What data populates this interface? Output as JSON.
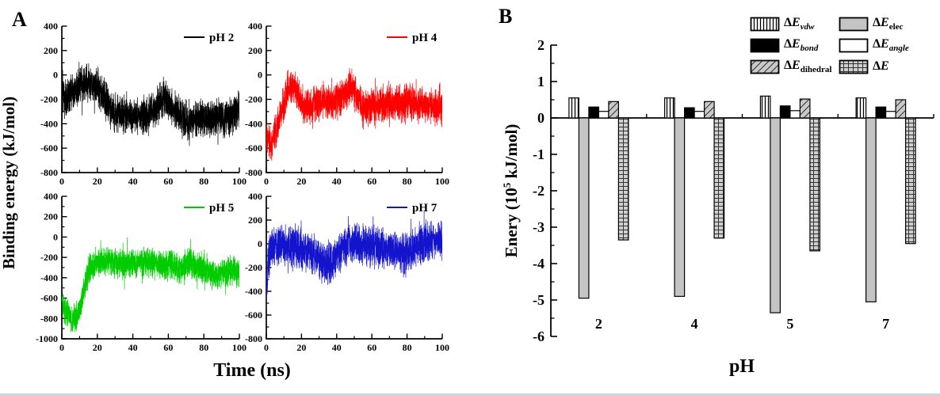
{
  "figure": {
    "panel_a_label": "A",
    "panel_b_label": "B",
    "background": "#ffffff"
  },
  "panel_a": {
    "ylabel": "Binding energy  (kJ/mol)",
    "xlabel": "Time (ns)"
  },
  "panel_b": {
    "ylabel_prefix": "Enery (10",
    "ylabel_exp": "5",
    "ylabel_suffix": " kJ/mol)",
    "xlabel": "pH",
    "legend": [
      {
        "main": "ΔE",
        "sub": "vdw",
        "sub_italic": true,
        "pattern": "vstripe"
      },
      {
        "main": "ΔE",
        "sub": "elec",
        "sub_italic": false,
        "pattern": "gray"
      },
      {
        "main": "ΔE",
        "sub": "bond",
        "sub_italic": true,
        "pattern": "black"
      },
      {
        "main": "ΔE",
        "sub": "angle",
        "sub_italic": true,
        "pattern": "white"
      },
      {
        "main": "ΔE",
        "sub": "dihedral",
        "sub_italic": false,
        "pattern": "diag"
      },
      {
        "main": "ΔE",
        "sub": "",
        "sub_italic": false,
        "pattern": "grid"
      }
    ]
  },
  "chart_data": [
    {
      "type": "line",
      "panel": "A",
      "series_label": "pH 2",
      "color": "#000000",
      "xlim": [
        0,
        100
      ],
      "x_ticks": [
        0,
        20,
        40,
        60,
        80,
        100
      ],
      "x_minor_step": 10,
      "ylim": [
        -800,
        400
      ],
      "y_ticks": [
        400,
        200,
        0,
        -200,
        -400,
        -600,
        -800
      ],
      "y_minor_step": 100,
      "xlabel": "Time (ns)",
      "ylabel": "Binding energy (kJ/mol)",
      "grid": false,
      "mean_profile": [
        [
          0,
          -210
        ],
        [
          4,
          -160
        ],
        [
          8,
          -120
        ],
        [
          12,
          -70
        ],
        [
          16,
          -60
        ],
        [
          20,
          -100
        ],
        [
          24,
          -200
        ],
        [
          28,
          -300
        ],
        [
          33,
          -320
        ],
        [
          38,
          -330
        ],
        [
          44,
          -340
        ],
        [
          50,
          -320
        ],
        [
          54,
          -240
        ],
        [
          57,
          -185
        ],
        [
          60,
          -230
        ],
        [
          64,
          -300
        ],
        [
          68,
          -355
        ],
        [
          74,
          -365
        ],
        [
          80,
          -355
        ],
        [
          86,
          -345
        ],
        [
          92,
          -350
        ],
        [
          96,
          -330
        ],
        [
          100,
          -290
        ]
      ],
      "noise_halfwidth": 155,
      "seed": 2,
      "n_points": 2400
    },
    {
      "type": "line",
      "panel": "A",
      "series_label": "pH 4",
      "color": "#ff0000",
      "xlim": [
        0,
        100
      ],
      "x_ticks": [
        0,
        20,
        40,
        60,
        80,
        100
      ],
      "x_minor_step": 10,
      "ylim": [
        -800,
        400
      ],
      "y_ticks": [
        400,
        200,
        0,
        -200,
        -400,
        -600,
        -800
      ],
      "y_minor_step": 100,
      "xlabel": "Time (ns)",
      "ylabel": "Binding energy (kJ/mol)",
      "grid": false,
      "mean_profile": [
        [
          0,
          -480
        ],
        [
          2,
          -560
        ],
        [
          4,
          -520
        ],
        [
          6,
          -430
        ],
        [
          9,
          -280
        ],
        [
          12,
          -130
        ],
        [
          15,
          -95
        ],
        [
          18,
          -160
        ],
        [
          21,
          -250
        ],
        [
          25,
          -265
        ],
        [
          29,
          -230
        ],
        [
          33,
          -205
        ],
        [
          37,
          -240
        ],
        [
          41,
          -200
        ],
        [
          45,
          -140
        ],
        [
          48,
          -90
        ],
        [
          51,
          -170
        ],
        [
          54,
          -240
        ],
        [
          58,
          -270
        ],
        [
          63,
          -245
        ],
        [
          68,
          -225
        ],
        [
          73,
          -240
        ],
        [
          78,
          -225
        ],
        [
          83,
          -230
        ],
        [
          88,
          -245
        ],
        [
          93,
          -255
        ],
        [
          100,
          -270
        ]
      ],
      "noise_halfwidth": 145,
      "seed": 5,
      "n_points": 2400
    },
    {
      "type": "line",
      "panel": "A",
      "series_label": "pH 5",
      "color": "#00cc00",
      "xlim": [
        0,
        100
      ],
      "x_ticks": [
        0,
        20,
        40,
        60,
        80,
        100
      ],
      "x_minor_step": 10,
      "ylim": [
        -1000,
        400
      ],
      "y_ticks": [
        400,
        200,
        0,
        -200,
        -400,
        -600,
        -800,
        -1000
      ],
      "y_minor_step": 100,
      "xlabel": "Time (ns)",
      "ylabel": "Binding energy (kJ/mol)",
      "grid": false,
      "mean_profile": [
        [
          0,
          -670
        ],
        [
          3,
          -740
        ],
        [
          6,
          -820
        ],
        [
          9,
          -760
        ],
        [
          11,
          -640
        ],
        [
          13,
          -480
        ],
        [
          15,
          -330
        ],
        [
          18,
          -260
        ],
        [
          22,
          -245
        ],
        [
          27,
          -230
        ],
        [
          32,
          -265
        ],
        [
          37,
          -280
        ],
        [
          42,
          -260
        ],
        [
          47,
          -255
        ],
        [
          52,
          -250
        ],
        [
          57,
          -270
        ],
        [
          62,
          -285
        ],
        [
          67,
          -295
        ],
        [
          72,
          -275
        ],
        [
          77,
          -285
        ],
        [
          82,
          -330
        ],
        [
          86,
          -390
        ],
        [
          90,
          -355
        ],
        [
          94,
          -330
        ],
        [
          100,
          -345
        ]
      ],
      "noise_halfwidth": 145,
      "seed": 9,
      "n_points": 2400
    },
    {
      "type": "line",
      "panel": "A",
      "series_label": "pH 7",
      "color": "#1414cc",
      "xlim": [
        0,
        100
      ],
      "x_ticks": [
        0,
        20,
        40,
        60,
        80,
        100
      ],
      "x_minor_step": 10,
      "ylim": [
        -800,
        400
      ],
      "y_ticks": [
        400,
        200,
        0,
        -200,
        -400,
        -600,
        -800
      ],
      "y_minor_step": 100,
      "xlabel": "Time (ns)",
      "ylabel": "Binding energy (kJ/mol)",
      "grid": false,
      "mean_profile": [
        [
          0,
          -360
        ],
        [
          1,
          -180
        ],
        [
          2,
          -70
        ],
        [
          4,
          -25
        ],
        [
          8,
          -15
        ],
        [
          12,
          -25
        ],
        [
          16,
          -15
        ],
        [
          20,
          -40
        ],
        [
          24,
          -55
        ],
        [
          28,
          -110
        ],
        [
          32,
          -160
        ],
        [
          35,
          -170
        ],
        [
          38,
          -140
        ],
        [
          41,
          -100
        ],
        [
          44,
          -45
        ],
        [
          47,
          -10
        ],
        [
          50,
          5
        ],
        [
          54,
          -15
        ],
        [
          58,
          -10
        ],
        [
          62,
          -25
        ],
        [
          66,
          -35
        ],
        [
          70,
          -45
        ],
        [
          74,
          -75
        ],
        [
          78,
          -85
        ],
        [
          82,
          -55
        ],
        [
          86,
          -25
        ],
        [
          90,
          0
        ],
        [
          94,
          15
        ],
        [
          100,
          30
        ]
      ],
      "noise_halfwidth": 165,
      "seed": 13,
      "n_points": 2400
    },
    {
      "type": "bar",
      "panel": "B",
      "categories": [
        "2",
        "4",
        "5",
        "7"
      ],
      "xlabel": "pH",
      "ylabel": "Enery (10^5 kJ/mol)",
      "ylim": [
        -6,
        2
      ],
      "y_ticks": [
        2,
        1,
        0,
        -1,
        -2,
        -3,
        -4,
        -5,
        -6
      ],
      "y_minor_step": 0.5,
      "grid": false,
      "legend_position": "top-right",
      "series": [
        {
          "name": "ΔE_vdw",
          "pattern": "vstripe",
          "values": [
            0.55,
            0.55,
            0.6,
            0.55
          ]
        },
        {
          "name": "ΔE_elec",
          "pattern": "gray",
          "values": [
            -4.95,
            -4.9,
            -5.35,
            -5.05
          ]
        },
        {
          "name": "ΔE_bond",
          "pattern": "black",
          "values": [
            0.3,
            0.28,
            0.33,
            0.3
          ]
        },
        {
          "name": "ΔE_angle",
          "pattern": "white",
          "values": [
            0.18,
            0.18,
            0.2,
            0.18
          ]
        },
        {
          "name": "ΔE_dihedral",
          "pattern": "diag",
          "values": [
            0.45,
            0.45,
            0.52,
            0.5
          ]
        },
        {
          "name": "ΔE",
          "pattern": "grid",
          "values": [
            -3.35,
            -3.3,
            -3.65,
            -3.45
          ]
        }
      ]
    }
  ]
}
